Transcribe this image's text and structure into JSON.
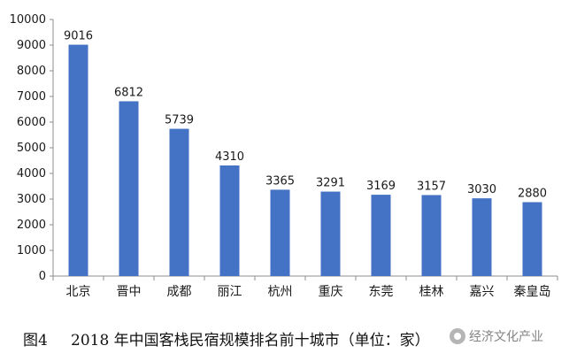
{
  "chart_data": {
    "type": "bar",
    "categories": [
      "北京",
      "晋中",
      "成都",
      "丽江",
      "杭州",
      "重庆",
      "东莞",
      "桂林",
      "嘉兴",
      "秦皇岛"
    ],
    "values": [
      9016,
      6812,
      5739,
      4310,
      3365,
      3291,
      3169,
      3157,
      3030,
      2880
    ],
    "ylim": [
      0,
      10000
    ],
    "yticks": [
      0,
      1000,
      2000,
      3000,
      4000,
      5000,
      6000,
      7000,
      8000,
      9000,
      10000
    ],
    "bar_color": "#4472c4",
    "grid": false,
    "data_labels": true
  },
  "caption": {
    "figure_number": "图4",
    "text": "2018 年中国客栈民宿规模排名前十城市（单位：家）"
  },
  "watermark": {
    "text": "经济文化产业"
  }
}
